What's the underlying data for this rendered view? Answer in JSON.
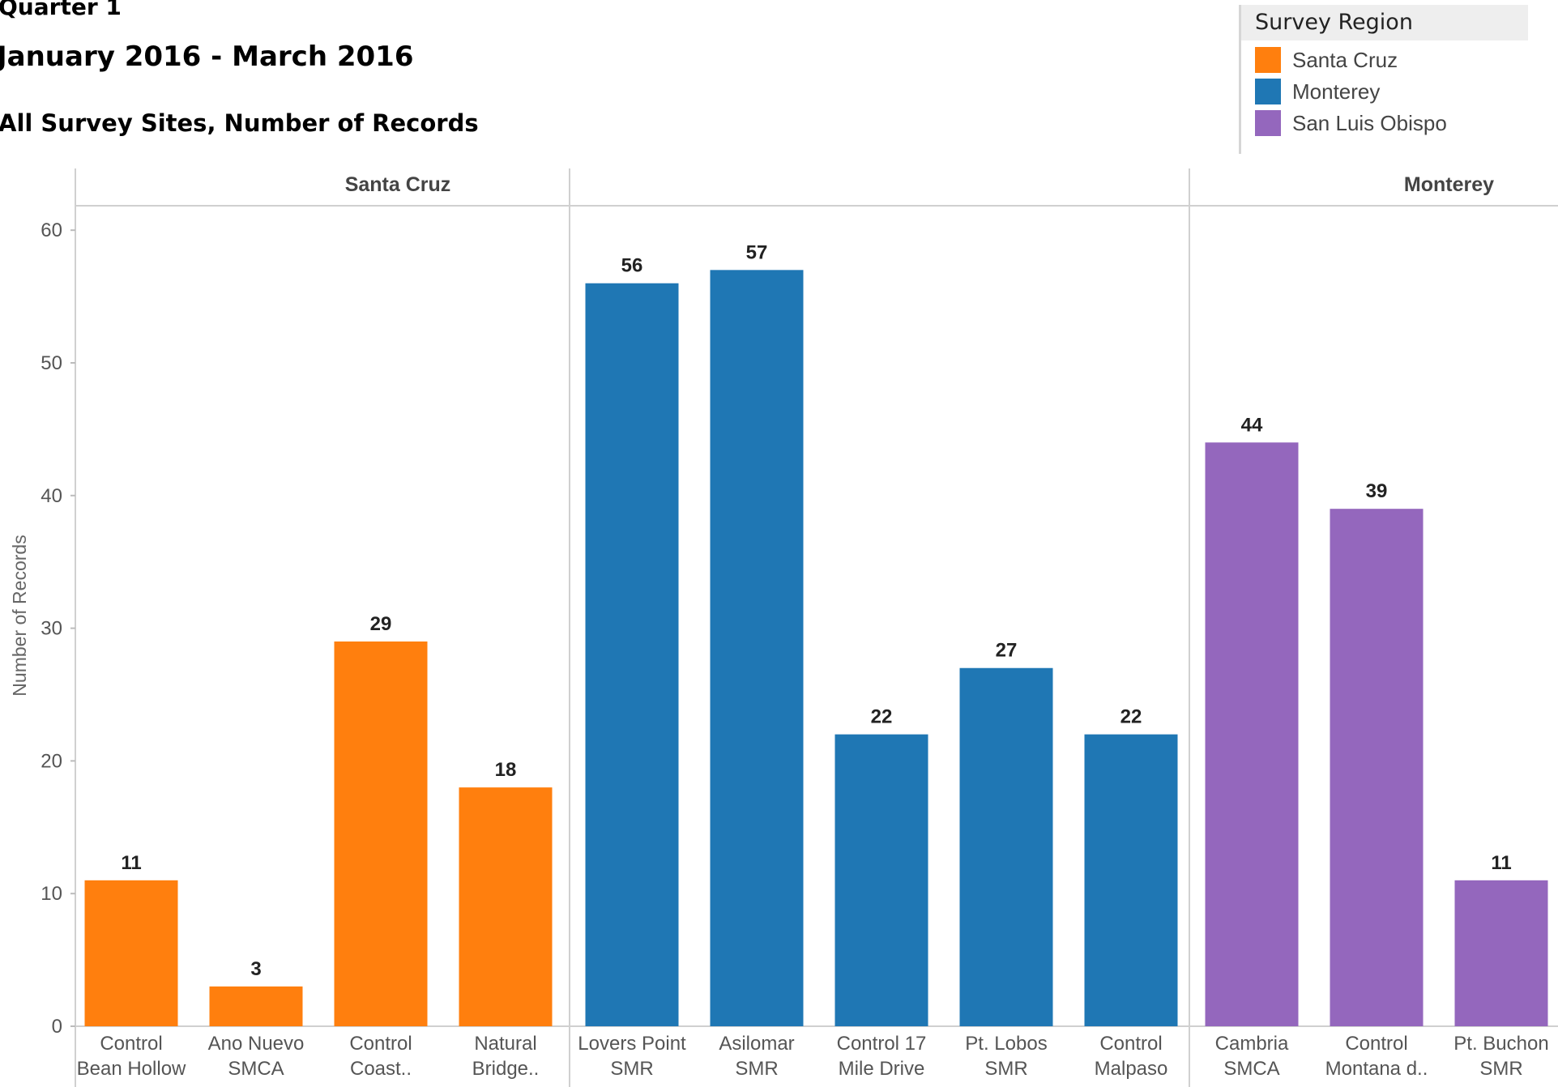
{
  "header": {
    "line1": "Quarter 1",
    "line2": "January 2016 - March 2016",
    "line3": "All Survey Sites, Number of Records"
  },
  "legend": {
    "title": "Survey Region",
    "items": [
      {
        "label": "Santa Cruz",
        "color": "#ff7f0e"
      },
      {
        "label": "Monterey",
        "color": "#1f77b4"
      },
      {
        "label": "San Luis Obispo",
        "color": "#9467bd"
      }
    ]
  },
  "chart_data": {
    "type": "bar",
    "ylabel": "Number of Records",
    "ylim": [
      0,
      60
    ],
    "yticks": [
      0,
      10,
      20,
      30,
      40,
      50,
      60
    ],
    "grid": false,
    "legend_position": "top-right",
    "panels": [
      {
        "name": "Santa Cruz",
        "color": "#ff7f0e",
        "categories": [
          [
            "Control",
            "Bean Hollow"
          ],
          [
            "Ano Nuevo",
            "SMCA"
          ],
          [
            "Control",
            "Coast.."
          ],
          [
            "Natural",
            "Bridge.."
          ]
        ],
        "values": [
          11,
          3,
          29,
          18
        ]
      },
      {
        "name": "Monterey",
        "color": "#1f77b4",
        "categories": [
          [
            "Lovers Point",
            "SMR"
          ],
          [
            "Asilomar",
            "SMR"
          ],
          [
            "Control 17",
            "Mile Drive"
          ],
          [
            "Pt. Lobos",
            "SMR"
          ],
          [
            "Control",
            "Malpaso"
          ]
        ],
        "values": [
          56,
          57,
          22,
          27,
          22
        ]
      },
      {
        "name": "San Luis Obispo",
        "color": "#9467bd",
        "categories": [
          [
            "Cambria",
            "SMCA"
          ],
          [
            "Control",
            "Montana d.."
          ],
          [
            "Pt. Buchon",
            "SMR"
          ]
        ],
        "values": [
          44,
          39,
          11
        ]
      }
    ]
  }
}
